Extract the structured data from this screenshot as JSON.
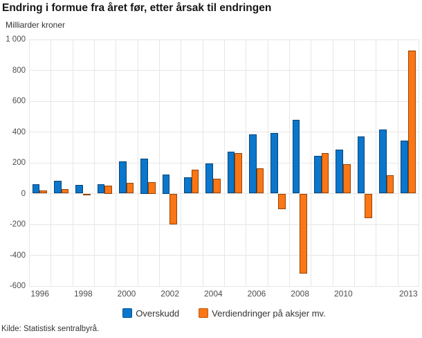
{
  "title": "Endring i formue fra året før, etter årsak til endringen",
  "source": "Kilde: Statistisk sentralbyrå.",
  "colors": {
    "background": "#ffffff",
    "gridline": "#e6e6e6",
    "title_text": "#161616",
    "axis_text": "#4d4d4d",
    "legend_text": "#333333",
    "series_blue": "#0b76cb",
    "series_orange": "#fb7614"
  },
  "chart_data": {
    "type": "bar",
    "title": "Endring i formue fra året før, etter årsak til endringen",
    "ylabel": "Milliarder kroner",
    "xlabel": "",
    "grid": true,
    "legend_position": "bottom",
    "ylim": [
      -600,
      1000
    ],
    "categories": [
      "1996",
      "1997",
      "1998",
      "1999",
      "2000",
      "2001",
      "2002",
      "2003",
      "2004",
      "2005",
      "2006",
      "2007",
      "2008",
      "2009",
      "2010",
      "2011",
      "2012",
      "2013"
    ],
    "series": [
      {
        "name": "Overskudd",
        "color": "#0b76cb",
        "values": [
          60,
          85,
          55,
          60,
          210,
          225,
          125,
          105,
          195,
          270,
          385,
          395,
          480,
          245,
          285,
          370,
          415,
          345
        ]
      },
      {
        "name": "Verdiendringer på aksjer mv.",
        "color": "#fb7614",
        "values": [
          20,
          30,
          -5,
          50,
          70,
          75,
          -200,
          155,
          95,
          265,
          165,
          -100,
          -520,
          265,
          190,
          -160,
          120,
          930
        ]
      }
    ],
    "yticks": {
      "values": [
        1000,
        800,
        600,
        400,
        200,
        0,
        -200,
        -400,
        -600
      ],
      "labels": [
        "1 000",
        "800",
        "600",
        "400",
        "200",
        "0",
        "-200",
        "-400",
        "-600"
      ]
    },
    "xtick_indices": [
      0,
      2,
      4,
      6,
      8,
      10,
      12,
      14,
      17
    ],
    "xtick_labels": [
      "1996",
      "1998",
      "2000",
      "2002",
      "2004",
      "2006",
      "2008",
      "2010",
      "2013"
    ]
  }
}
